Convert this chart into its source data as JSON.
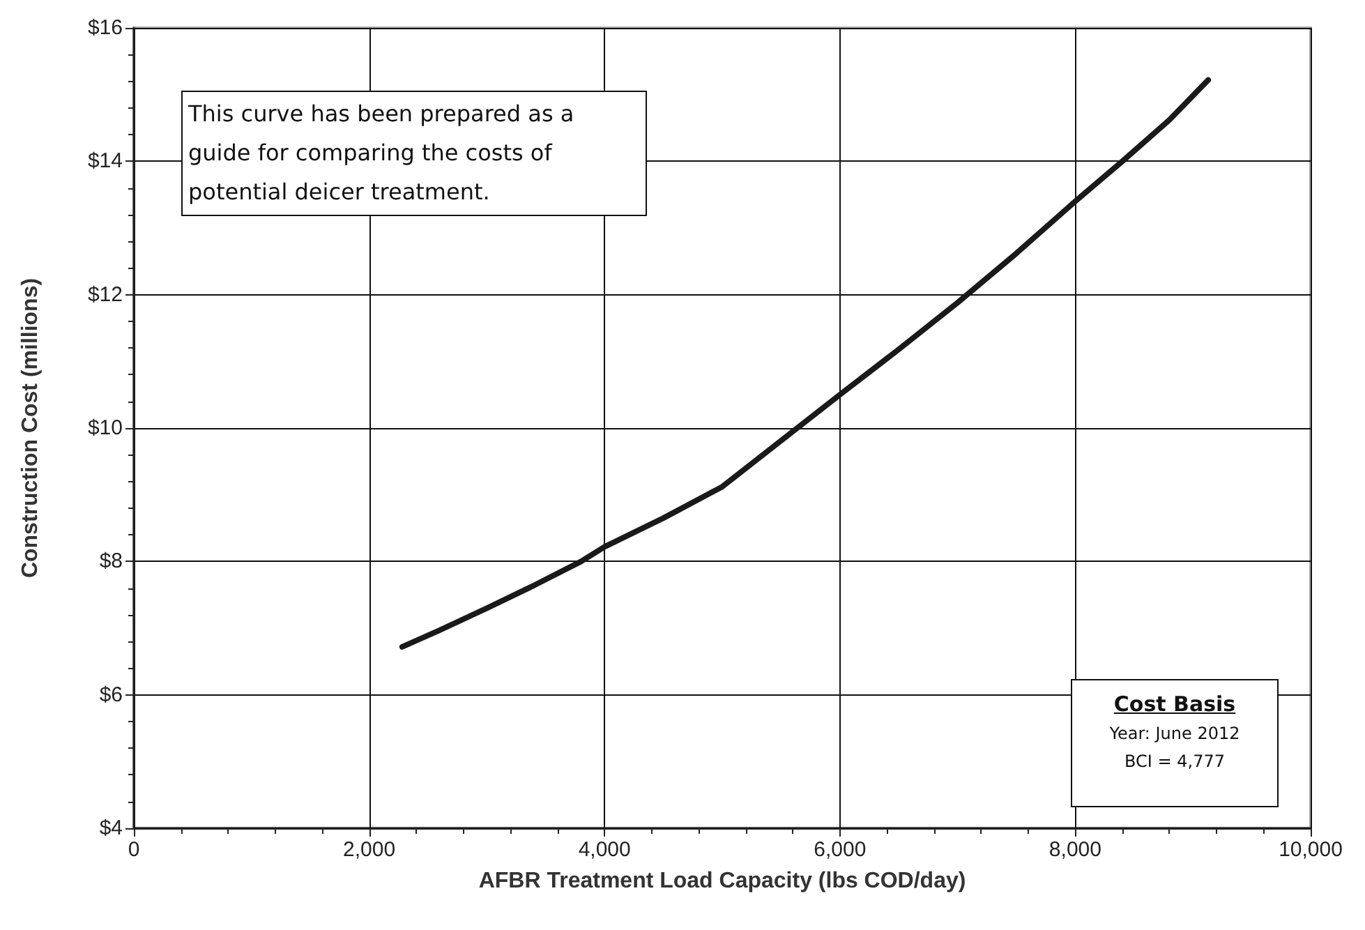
{
  "chart_data": {
    "type": "line",
    "xlabel": "AFBR Treatment Load Capacity (lbs COD/day)",
    "ylabel": "Construction Cost (millions)",
    "annotations": [
      "This curve has been prepared as a guide for comparing the costs of potential deicer treatment.",
      "Cost Basis",
      "Year: June 2012",
      "BCI = 4,777"
    ],
    "x": [
      2280,
      2600,
      3000,
      3400,
      3800,
      4000,
      4500,
      5000,
      5600,
      6000,
      6500,
      7000,
      7500,
      8000,
      8400,
      8800,
      9130
    ],
    "series": [
      {
        "color": "#1a1a1a",
        "values": [
          6.72,
          6.97,
          7.3,
          7.64,
          8.0,
          8.22,
          8.65,
          9.12,
          9.95,
          10.5,
          11.18,
          11.88,
          12.62,
          13.4,
          14.0,
          14.62,
          15.22
        ]
      }
    ],
    "xlim": [
      0,
      10000
    ],
    "ylim": [
      4,
      16
    ],
    "xticks": [
      0,
      {
        "value": 2000,
        "label": "2,000"
      },
      {
        "value": 4000,
        "label": "4,000"
      },
      {
        "value": 6000,
        "label": "6,000"
      },
      {
        "value": 8000,
        "label": "8,000"
      },
      {
        "value": 10000,
        "label": "10,000"
      }
    ],
    "yticks": [
      {
        "value": 4,
        "label": "$4"
      },
      {
        "value": 6,
        "label": "$6"
      },
      {
        "value": 8,
        "label": "$8"
      },
      {
        "value": 10,
        "label": "$10"
      },
      {
        "value": 12,
        "label": "$12"
      },
      {
        "value": 14,
        "label": "$14"
      },
      {
        "value": 16,
        "label": "$16"
      }
    ],
    "grid": true,
    "marker": "none",
    "line_style": "solid"
  }
}
